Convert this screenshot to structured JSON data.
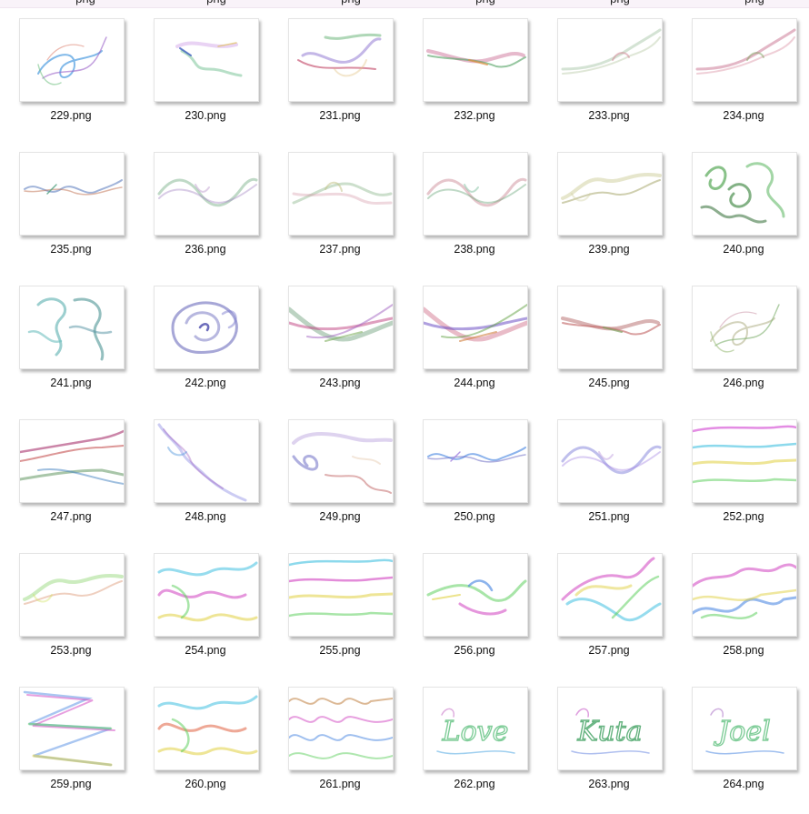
{
  "files": [
    {
      "name": "229.png",
      "art": "swirl-curl",
      "colors": [
        "#4b9be0",
        "#9a60c8",
        "#e08a7a",
        "#7cc48a"
      ]
    },
    {
      "name": "230.png",
      "art": "ribbon-z",
      "colors": [
        "#4060c0",
        "#c080e0",
        "#70c090",
        "#e0c060"
      ]
    },
    {
      "name": "231.png",
      "art": "ribbon-twist",
      "colors": [
        "#8a70d0",
        "#c04060",
        "#60b070",
        "#e0c080"
      ]
    },
    {
      "name": "232.png",
      "art": "ribbon-flat",
      "colors": [
        "#c05080",
        "#e09040",
        "#50a060",
        "#8090d0"
      ]
    },
    {
      "name": "233.png",
      "art": "ribbon-rise",
      "colors": [
        "#a0c0a0",
        "#d08090",
        "#c0d0b0",
        "#e0a0b0"
      ]
    },
    {
      "name": "234.png",
      "art": "ribbon-rise",
      "colors": [
        "#c06080",
        "#80a060",
        "#e0a0b0",
        "#b070a0"
      ]
    },
    {
      "name": "235.png",
      "art": "wave-thin",
      "colors": [
        "#6080c0",
        "#c07050",
        "#50a080",
        "#a070c0"
      ]
    },
    {
      "name": "236.png",
      "art": "wave-soft",
      "colors": [
        "#60a070",
        "#a080c0",
        "#c0a0d0",
        "#4080c0"
      ]
    },
    {
      "name": "237.png",
      "art": "ribbon-cross",
      "colors": [
        "#80b080",
        "#d090a0",
        "#c0c080",
        "#a0b0d0"
      ]
    },
    {
      "name": "238.png",
      "art": "wave-soft",
      "colors": [
        "#c07080",
        "#60a070",
        "#80c0a0",
        "#d0a080"
      ]
    },
    {
      "name": "239.png",
      "art": "ribbon-hump",
      "colors": [
        "#c0c080",
        "#a0a060",
        "#d0d0a0",
        "#e0d0b0"
      ]
    },
    {
      "name": "240.png",
      "art": "curls-green",
      "colors": [
        "#3a9a3a",
        "#2e7d32",
        "#66bb6a",
        "#1b5e20"
      ]
    },
    {
      "name": "241.png",
      "art": "curls-teal",
      "colors": [
        "#3aa0a0",
        "#2a8080",
        "#70c0c0",
        "#5090a0"
      ]
    },
    {
      "name": "242.png",
      "art": "curls-blue",
      "colors": [
        "#5050b0",
        "#7070c0",
        "#3030a0",
        "#8080d0"
      ]
    },
    {
      "name": "243.png",
      "art": "ribbon-wide",
      "colors": [
        "#408050",
        "#c04080",
        "#a060c0",
        "#80b060"
      ]
    },
    {
      "name": "244.png",
      "art": "ribbon-wide",
      "colors": [
        "#c04060",
        "#6040c0",
        "#60a040",
        "#d08040"
      ]
    },
    {
      "name": "245.png",
      "art": "ribbon-flat",
      "colors": [
        "#a04040",
        "#80a060",
        "#c06060",
        "#d0a080"
      ]
    },
    {
      "name": "246.png",
      "art": "swirl-curl",
      "colors": [
        "#c0c0a0",
        "#80b070",
        "#d0a0b0",
        "#a0c080"
      ]
    },
    {
      "name": "247.png",
      "art": "multi-lines",
      "colors": [
        "#a02060",
        "#c04040",
        "#408040",
        "#4080c0"
      ]
    },
    {
      "name": "248.png",
      "art": "ribbon-down",
      "colors": [
        "#8080e0",
        "#a060c0",
        "#60a0e0",
        "#c080d0"
      ]
    },
    {
      "name": "249.png",
      "art": "ribbon-loop",
      "colors": [
        "#a080d0",
        "#6060c0",
        "#c06060",
        "#e0c0a0"
      ]
    },
    {
      "name": "250.png",
      "art": "wave-thin",
      "colors": [
        "#4080e0",
        "#6060c0",
        "#a080e0",
        "#60c0e0"
      ]
    },
    {
      "name": "251.png",
      "art": "wave-soft",
      "colors": [
        "#6060d0",
        "#a080e0",
        "#c0a0e0",
        "#8080c0"
      ]
    },
    {
      "name": "252.png",
      "art": "rainbow-lines",
      "colors": [
        "#d040d0",
        "#40c0e0",
        "#e0d040",
        "#60d060"
      ]
    },
    {
      "name": "253.png",
      "art": "ribbon-hump",
      "colors": [
        "#80d060",
        "#e0a080",
        "#d0e060",
        "#a0e0a0"
      ]
    },
    {
      "name": "254.png",
      "art": "rainbow-curls",
      "colors": [
        "#40c0e0",
        "#d040c0",
        "#e0d040",
        "#60d060"
      ]
    },
    {
      "name": "255.png",
      "art": "rainbow-lines",
      "colors": [
        "#40c0e0",
        "#d040c0",
        "#e0d040",
        "#60d060"
      ]
    },
    {
      "name": "256.png",
      "art": "rainbow-twist",
      "colors": [
        "#60d060",
        "#d040c0",
        "#4080e0",
        "#e0d040"
      ]
    },
    {
      "name": "257.png",
      "art": "rainbow-zig",
      "colors": [
        "#d040c0",
        "#40c0e0",
        "#e0d040",
        "#60d060"
      ]
    },
    {
      "name": "258.png",
      "art": "rainbow-zig2",
      "colors": [
        "#d040c0",
        "#4080e0",
        "#e0d040",
        "#60d060"
      ]
    },
    {
      "name": "259.png",
      "art": "zigzag",
      "colors": [
        "#4080e0",
        "#d040c0",
        "#e0d040",
        "#60d060"
      ]
    },
    {
      "name": "260.png",
      "art": "rainbow-curls",
      "colors": [
        "#40c0e0",
        "#e06040",
        "#e0d040",
        "#60d060"
      ]
    },
    {
      "name": "261.png",
      "art": "multi-waves",
      "colors": [
        "#c08040",
        "#d040c0",
        "#4080e0",
        "#60d060"
      ]
    },
    {
      "name": "262.png",
      "art": "script",
      "text": "Love",
      "colors": [
        "#60c080",
        "#40a0e0",
        "#c060c0",
        "#e0a040"
      ]
    },
    {
      "name": "263.png",
      "art": "script",
      "text": "Kuta",
      "colors": [
        "#40a060",
        "#6080e0",
        "#c040c0",
        "#60c060"
      ]
    },
    {
      "name": "264.png",
      "art": "script",
      "text": "Joel",
      "colors": [
        "#60c080",
        "#4080e0",
        "#a060c0",
        "#c0d060"
      ]
    }
  ],
  "top_row_cut_text": "png"
}
